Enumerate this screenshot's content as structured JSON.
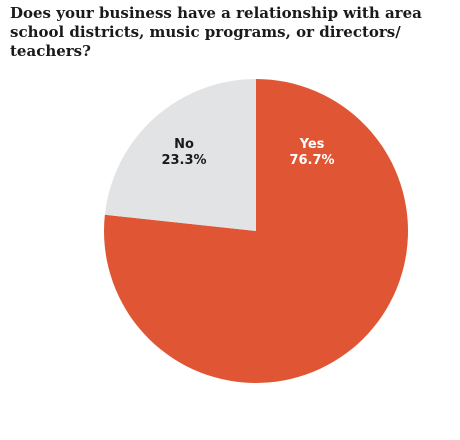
{
  "chart_data": {
    "type": "pie",
    "title": "Does your business have a relationship with area school districts, music programs, or directors/ teachers?",
    "slices": [
      {
        "label": "Yes",
        "value": 76.7,
        "value_label": "76.7%",
        "color": "#e05634",
        "label_color": "#ffffff"
      },
      {
        "label": "No",
        "value": 23.3,
        "value_label": "23.3%",
        "color": "#e2e3e5",
        "label_color": "#1a1a1a"
      }
    ],
    "start_angle": "12 o'clock",
    "direction": "clockwise",
    "legend": "none"
  }
}
